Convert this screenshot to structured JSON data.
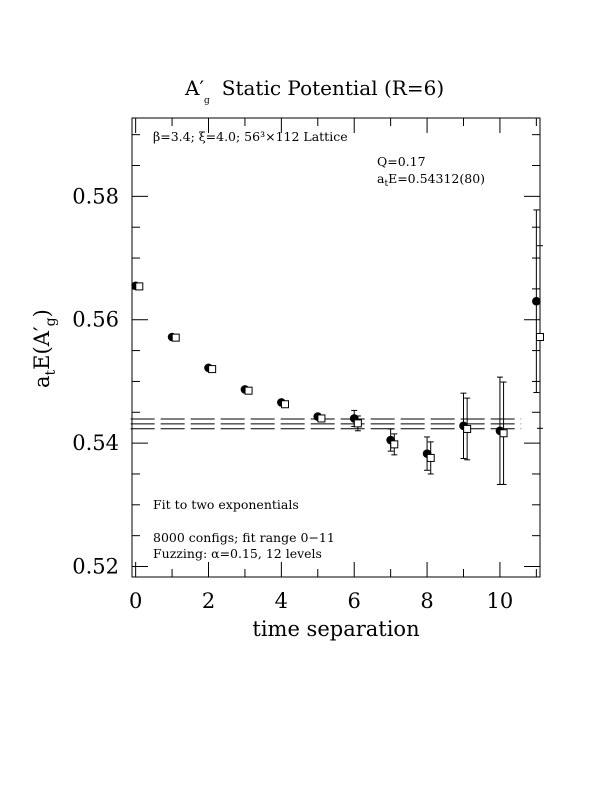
{
  "chart_data": {
    "type": "scatter",
    "title": "A′g  Static Potential (R=6)",
    "title_main": "A",
    "title_prime": "′",
    "title_sub": "g",
    "title_rest": "Static Potential (R=6)",
    "xlabel": "time separation",
    "ylabel": "a_t E(A′_g)",
    "ylabel_parts": {
      "a": "a",
      "t": "t",
      "E": "E(A",
      "prime": "′",
      "g": "g",
      "close": ")"
    },
    "xlim": [
      -0.1,
      11.1
    ],
    "ylim": [
      0.5183,
      0.5927
    ],
    "xticks": [
      0,
      2,
      4,
      6,
      8,
      10
    ],
    "xtick_labels": [
      "0",
      "2",
      "4",
      "6",
      "8",
      "10"
    ],
    "yticks": [
      0.52,
      0.54,
      0.56,
      0.58
    ],
    "ytick_labels": [
      "0.52",
      "0.54",
      "0.56",
      "0.58"
    ],
    "annotations": {
      "lattice": "β=3.4; ξ=4.0; 56³×112 Lattice",
      "q": "Q=0.17",
      "energy": "a_t E=0.54312(80)",
      "energy_parts": {
        "a": "a",
        "t": "t",
        "rest": "E=0.54312(80)"
      },
      "fit": "Fit to two exponentials",
      "configs": "8000 configs; fit range 0−11",
      "fuzzing": "Fuzzing: α=0.15, 12 levels"
    },
    "fit": {
      "value": 0.54312,
      "error": 0.0008,
      "x_range": [
        0,
        10.5
      ]
    },
    "series": [
      {
        "marker": "filled-circle",
        "x": [
          0,
          1,
          2,
          3,
          4,
          5,
          6,
          7,
          8,
          9,
          10,
          11
        ],
        "y": [
          0.5655,
          0.5572,
          0.5522,
          0.5487,
          0.5466,
          0.5443,
          0.544,
          0.5405,
          0.5383,
          0.5428,
          0.542,
          0.563
        ],
        "err": [
          0.0002,
          0.0002,
          0.0002,
          0.0002,
          0.0003,
          0.0004,
          0.0013,
          0.0018,
          0.0027,
          0.0053,
          0.0087,
          0.0148
        ]
      },
      {
        "marker": "open-square",
        "x": [
          0.1,
          1.1,
          2.1,
          3.1,
          4.1,
          5.1,
          6.1,
          7.1,
          8.1,
          9.1,
          10.1,
          11.1
        ],
        "y": [
          0.5654,
          0.5571,
          0.552,
          0.5485,
          0.5463,
          0.544,
          0.5432,
          0.5398,
          0.5376,
          0.5423,
          0.5416,
          0.5572
        ],
        "err": [
          0.0002,
          0.0002,
          0.0002,
          0.0002,
          0.0003,
          0.0004,
          0.0012,
          0.0017,
          0.0026,
          0.005,
          0.0083,
          0.0148
        ]
      }
    ]
  }
}
